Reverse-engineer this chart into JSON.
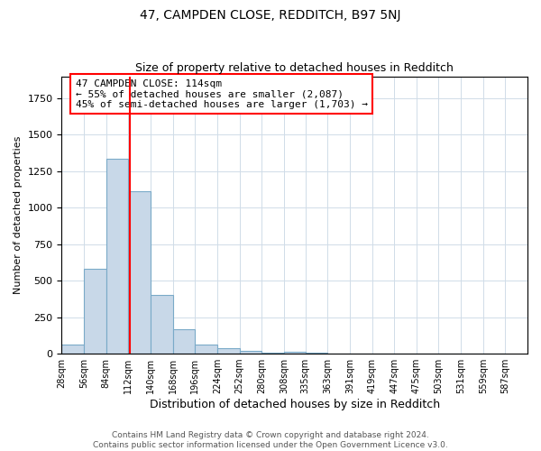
{
  "title": "47, CAMPDEN CLOSE, REDDITCH, B97 5NJ",
  "subtitle": "Size of property relative to detached houses in Redditch",
  "xlabel": "Distribution of detached houses by size in Redditch",
  "ylabel": "Number of detached properties",
  "bar_edges": [
    28,
    56,
    84,
    112,
    140,
    168,
    196,
    224,
    252,
    280,
    308,
    335,
    363,
    391,
    419,
    447,
    475,
    503,
    531,
    559,
    587
  ],
  "bar_heights": [
    60,
    580,
    1335,
    1110,
    400,
    170,
    60,
    35,
    20,
    5,
    15,
    5,
    0,
    0,
    0,
    0,
    0,
    0,
    0,
    0
  ],
  "bar_color": "#c8d8e8",
  "bar_edge_color": "#7aaac8",
  "red_line_x": 114,
  "ylim": [
    0,
    1900
  ],
  "annotation_line1": "47 CAMPDEN CLOSE: 114sqm",
  "annotation_line2": "← 55% of detached houses are smaller (2,087)",
  "annotation_line3": "45% of semi-detached houses are larger (1,703) →",
  "annotation_box_edge_color": "red",
  "footer_text": "Contains HM Land Registry data © Crown copyright and database right 2024.\nContains public sector information licensed under the Open Government Licence v3.0.",
  "title_fontsize": 10,
  "subtitle_fontsize": 9,
  "tick_label_fontsize": 7,
  "ylabel_fontsize": 8,
  "xlabel_fontsize": 9,
  "annotation_fontsize": 8,
  "background_color": "white",
  "grid_color": "#d0dce8"
}
